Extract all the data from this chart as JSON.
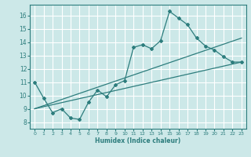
{
  "xlabel": "Humidex (Indice chaleur)",
  "bg_color": "#cce8e8",
  "grid_color": "#ffffff",
  "line_color": "#2d7d7d",
  "xlim": [
    -0.5,
    23.5
  ],
  "ylim": [
    7.5,
    16.8
  ],
  "xticks": [
    0,
    1,
    2,
    3,
    4,
    5,
    6,
    7,
    8,
    9,
    10,
    11,
    12,
    13,
    14,
    15,
    16,
    17,
    18,
    19,
    20,
    21,
    22,
    23
  ],
  "yticks": [
    8,
    9,
    10,
    11,
    12,
    13,
    14,
    15,
    16
  ],
  "main_x": [
    0,
    1,
    2,
    3,
    4,
    5,
    6,
    7,
    8,
    9,
    10,
    11,
    12,
    13,
    14,
    15,
    16,
    17,
    18,
    19,
    20,
    21,
    22,
    23
  ],
  "main_y": [
    11.0,
    9.8,
    8.7,
    9.0,
    8.3,
    8.2,
    9.5,
    10.4,
    9.9,
    10.8,
    11.1,
    13.6,
    13.8,
    13.5,
    14.1,
    16.3,
    15.8,
    15.3,
    14.3,
    13.7,
    13.4,
    12.9,
    12.5,
    12.5
  ],
  "line2_x": [
    0,
    23
  ],
  "line2_y": [
    9.0,
    12.5
  ],
  "line3_x": [
    0,
    23
  ],
  "line3_y": [
    9.0,
    14.3
  ]
}
